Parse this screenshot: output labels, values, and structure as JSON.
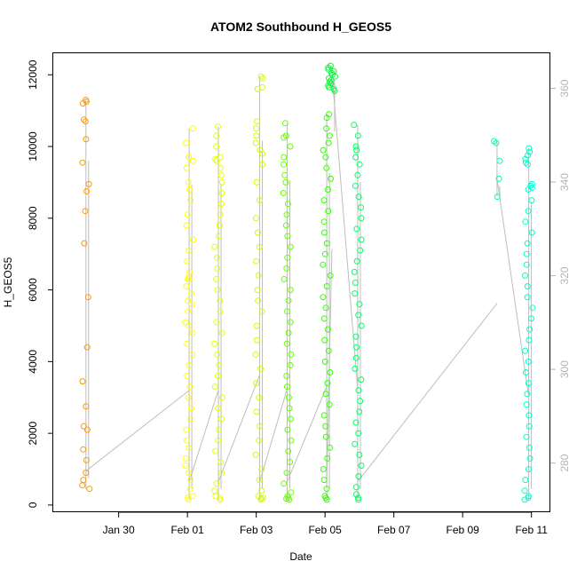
{
  "chart_data": {
    "type": "scatter",
    "title": "ATOM2 Southbound H_GEOS5",
    "xlabel": "Date",
    "ylabel": "H_GEOS5",
    "x_unit": "days",
    "x_ticks": [
      {
        "label": "Jan 30",
        "x": 29.0
      },
      {
        "label": "Feb 01",
        "x": 31.0
      },
      {
        "label": "Feb 03",
        "x": 33.0
      },
      {
        "label": "Feb 05",
        "x": 35.0
      },
      {
        "label": "Feb 07",
        "x": 37.0
      },
      {
        "label": "Feb 09",
        "x": 39.0
      },
      {
        "label": "Feb 11",
        "x": 41.0
      }
    ],
    "xlim": [
      27.1,
      41.55
    ],
    "ylim": [
      -200,
      12600
    ],
    "y_ticks": [
      0,
      2000,
      4000,
      6000,
      8000,
      10000,
      12000
    ],
    "y2_ticks": [
      280,
      300,
      320,
      340,
      360
    ],
    "y2lim": [
      269.5,
      367.5
    ],
    "grid": false,
    "colors": {
      "line": "#bebebe",
      "right_axis": "#b4b4b4",
      "flight_1": "#ff9900",
      "flight_2": "#ffff00",
      "flight_3": "#e5ff00",
      "flight_4": "#ccff00",
      "flight_5": "#66ff00",
      "flight_6": "#33ff00",
      "flight_7": "#00ff33",
      "flight_8": "#00ff66",
      "flight_9": "#00ffb2",
      "flight_10": "#00ffcc"
    },
    "series": [
      {
        "color_key": "flight_1",
        "x": 28.05,
        "heights": [
          11300,
          11250,
          11200,
          10750,
          10700,
          10200,
          9550,
          8950,
          8750,
          8200,
          7300,
          5800,
          4400,
          3450,
          2750,
          2200,
          2100,
          1550,
          1250,
          900,
          700,
          550,
          450
        ]
      },
      {
        "color_key": "flight_2",
        "x": 31.05,
        "heights": [
          10500,
          10100,
          9700,
          9600,
          9400,
          9000,
          8800,
          8500,
          8100,
          7800,
          7400,
          7100,
          6800,
          6500,
          6300,
          6100,
          5900,
          5700,
          5400,
          5100,
          4800,
          4500,
          4200,
          3900,
          3600,
          3300,
          3000,
          2700,
          2400,
          2100,
          1800,
          1600,
          1300,
          1100,
          900,
          700,
          450,
          250,
          200,
          150,
          6300,
          6350,
          5600,
          5000
        ]
      },
      {
        "color_key": "flight_3",
        "x": 31.9,
        "heights": [
          10550,
          10300,
          10000,
          9700,
          9650,
          9600,
          9400,
          9200,
          9000,
          8700,
          8400,
          8100,
          7800,
          7500,
          7200,
          6900,
          6600,
          6300,
          6000,
          5700,
          5400,
          5100,
          4800,
          4500,
          4200,
          3900,
          3600,
          3300,
          3000,
          2700,
          2400,
          2100,
          1800,
          1500,
          1200,
          900,
          600,
          400,
          250,
          200,
          150
        ]
      },
      {
        "color_key": "flight_4",
        "x": 33.1,
        "heights": [
          11950,
          11900,
          11600,
          11650,
          10700,
          10500,
          10300,
          10100,
          9900,
          9800,
          9500,
          9000,
          8500,
          8000,
          7600,
          7200,
          6800,
          6400,
          6000,
          5700,
          5400,
          5000,
          4600,
          4200,
          3800,
          3400,
          3000,
          2600,
          2200,
          1800,
          1400,
          1000,
          700,
          400,
          250,
          200,
          180,
          150
        ]
      },
      {
        "color_key": "flight_5",
        "x": 33.9,
        "heights": [
          10650,
          10300,
          10250,
          10000,
          9700,
          9500,
          9200,
          9000,
          8700,
          8400,
          8100,
          7800,
          7500,
          7200,
          6900,
          6600,
          6300,
          6000,
          5700,
          5400,
          5100,
          4800,
          4500,
          4200,
          3900,
          3600,
          3300,
          3000,
          2700,
          2400,
          2100,
          1800,
          1500,
          1200,
          900,
          600,
          350,
          250,
          200,
          180,
          150
        ]
      },
      {
        "color_key": "flight_6",
        "x": 35.05,
        "heights": [
          10900,
          10800,
          10500,
          10300,
          10100,
          9900,
          9700,
          9400,
          9100,
          8800,
          8500,
          8200,
          7900,
          7600,
          7300,
          7000,
          6700,
          6400,
          6100,
          5800,
          5500,
          5200,
          4900,
          4600,
          4300,
          4000,
          3700,
          3400,
          3100,
          2800,
          2500,
          2200,
          1900,
          1600,
          1300,
          1000,
          700,
          450,
          250,
          200,
          150
        ]
      },
      {
        "color_key": "flight_7",
        "x": 35.2,
        "heights": [
          12250,
          12200,
          12150,
          12100,
          12050,
          12000,
          11950,
          11900,
          11850,
          11800,
          11750,
          11700,
          11650,
          11600,
          11550
        ]
      },
      {
        "color_key": "flight_8",
        "x": 35.95,
        "heights": [
          10600,
          10300,
          10000,
          9900,
          9700,
          9500,
          9200,
          8900,
          8600,
          8300,
          8000,
          7700,
          7400,
          7100,
          6800,
          6500,
          6200,
          5900,
          5600,
          5300,
          5000,
          4700,
          4400,
          4100,
          3800,
          3500,
          3200,
          2900,
          2600,
          2300,
          2000,
          1700,
          1400,
          1100,
          800,
          500,
          300,
          200,
          150
        ]
      },
      {
        "color_key": "flight_9",
        "x": 40.0,
        "heights": [
          10150,
          10100,
          9600,
          9100,
          8600
        ]
      },
      {
        "color_key": "flight_10",
        "x": 40.92,
        "heights": [
          9950,
          9850,
          9750,
          9650,
          9550,
          9500,
          8950,
          8900,
          8850,
          8800,
          8500,
          8200,
          7900,
          7600,
          7300,
          7000,
          6700,
          6400,
          6100,
          5800,
          5500,
          5200,
          4900,
          4600,
          4300,
          4000,
          3700,
          3400,
          3100,
          2800,
          2500,
          2200,
          1900,
          1600,
          1300,
          1000,
          700,
          400,
          250,
          200,
          150
        ]
      }
    ]
  }
}
